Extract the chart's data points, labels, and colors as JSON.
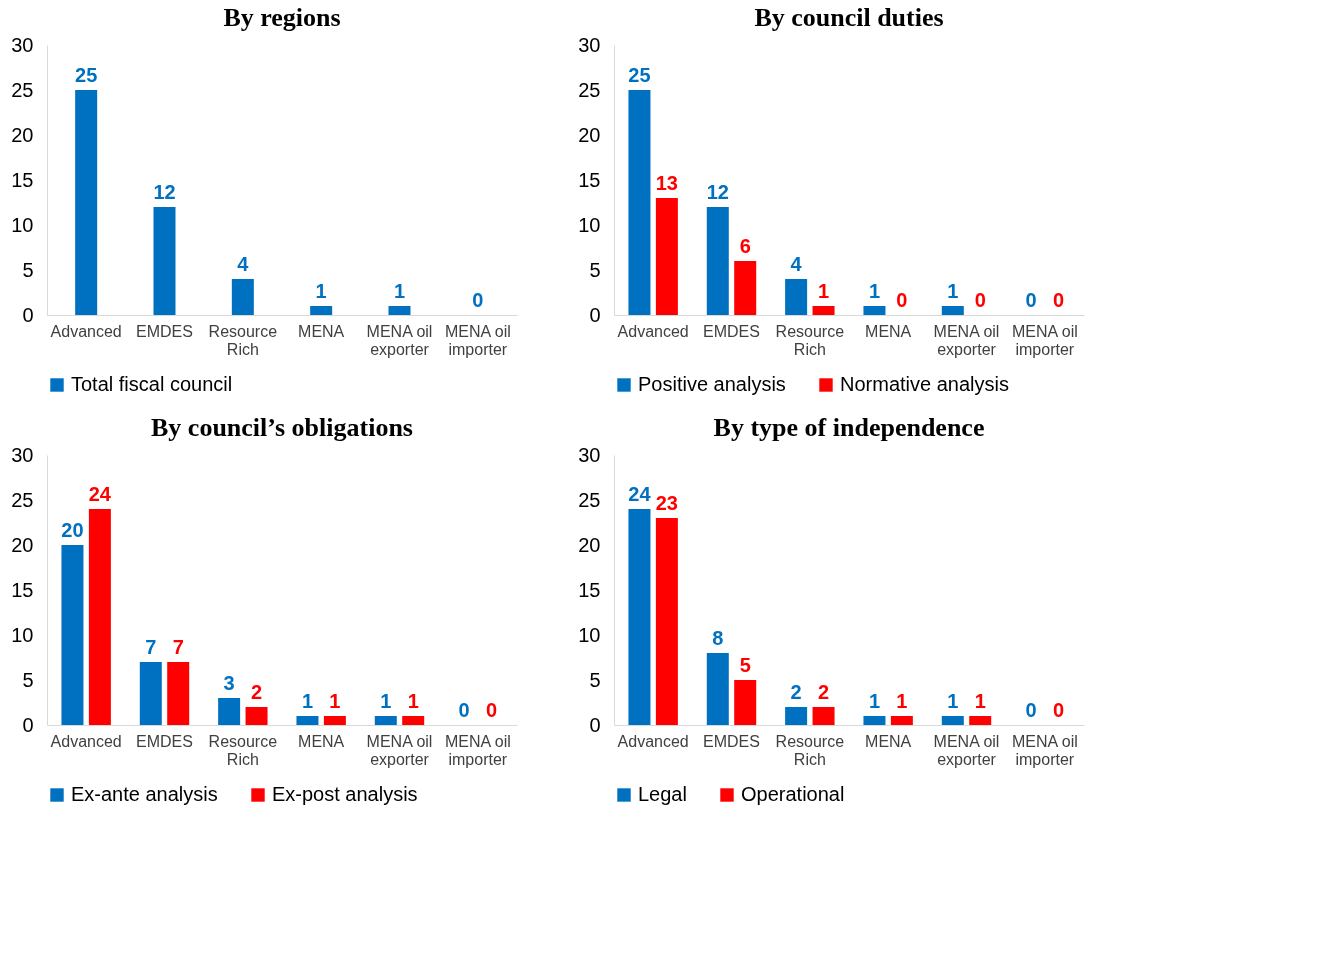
{
  "chart_data": [
    {
      "type": "bar",
      "title": "By regions",
      "categories": [
        "Advanced",
        "EMDES",
        "Resource Rich",
        "MENA",
        "MENA oil exporter",
        "MENA oil importer"
      ],
      "series": [
        {
          "name": "Total  fiscal council",
          "color": "#0070c0",
          "values": [
            25,
            12,
            4,
            1,
            1,
            0
          ]
        }
      ],
      "ylim": [
        0,
        30
      ],
      "yticks": [
        0,
        5,
        10,
        15,
        20,
        25,
        30
      ],
      "grid": false,
      "legend": "bottom",
      "data_labels": true
    },
    {
      "type": "bar",
      "title": "By council duties",
      "categories": [
        "Advanced",
        "EMDES",
        "Resource Rich",
        "MENA",
        "MENA oil exporter",
        "MENA oil importer"
      ],
      "series": [
        {
          "name": "Positive analysis",
          "color": "#0070c0",
          "values": [
            25,
            12,
            4,
            1,
            1,
            0
          ]
        },
        {
          "name": "Normative analysis",
          "color": "#ff0000",
          "values": [
            13,
            6,
            1,
            0,
            0,
            0
          ]
        }
      ],
      "ylim": [
        0,
        30
      ],
      "yticks": [
        0,
        5,
        10,
        15,
        20,
        25,
        30
      ],
      "grid": false,
      "legend": "bottom",
      "data_labels": true
    },
    {
      "type": "bar",
      "title": "By council’s obligations",
      "categories": [
        "Advanced",
        "EMDES",
        "Resource Rich",
        "MENA",
        "MENA oil exporter",
        "MENA oil importer"
      ],
      "series": [
        {
          "name": "Ex-ante analysis",
          "color": "#0070c0",
          "values": [
            20,
            7,
            3,
            1,
            1,
            0
          ]
        },
        {
          "name": "Ex-post analysis",
          "color": "#ff0000",
          "values": [
            24,
            7,
            2,
            1,
            1,
            0
          ]
        }
      ],
      "ylim": [
        0,
        30
      ],
      "yticks": [
        0,
        5,
        10,
        15,
        20,
        25,
        30
      ],
      "grid": false,
      "legend": "bottom",
      "data_labels": true
    },
    {
      "type": "bar",
      "title": "By type of independence",
      "categories": [
        "Advanced",
        "EMDES",
        "Resource Rich",
        "MENA",
        "MENA oil exporter",
        "MENA oil importer"
      ],
      "series": [
        {
          "name": "Legal",
          "color": "#0070c0",
          "values": [
            24,
            8,
            2,
            1,
            1,
            0
          ]
        },
        {
          "name": "Operational",
          "color": "#ff0000",
          "values": [
            23,
            5,
            2,
            1,
            1,
            0
          ]
        }
      ],
      "ylim": [
        0,
        30
      ],
      "yticks": [
        0,
        5,
        10,
        15,
        20,
        25,
        30
      ],
      "grid": false,
      "legend": "bottom",
      "data_labels": true
    }
  ]
}
